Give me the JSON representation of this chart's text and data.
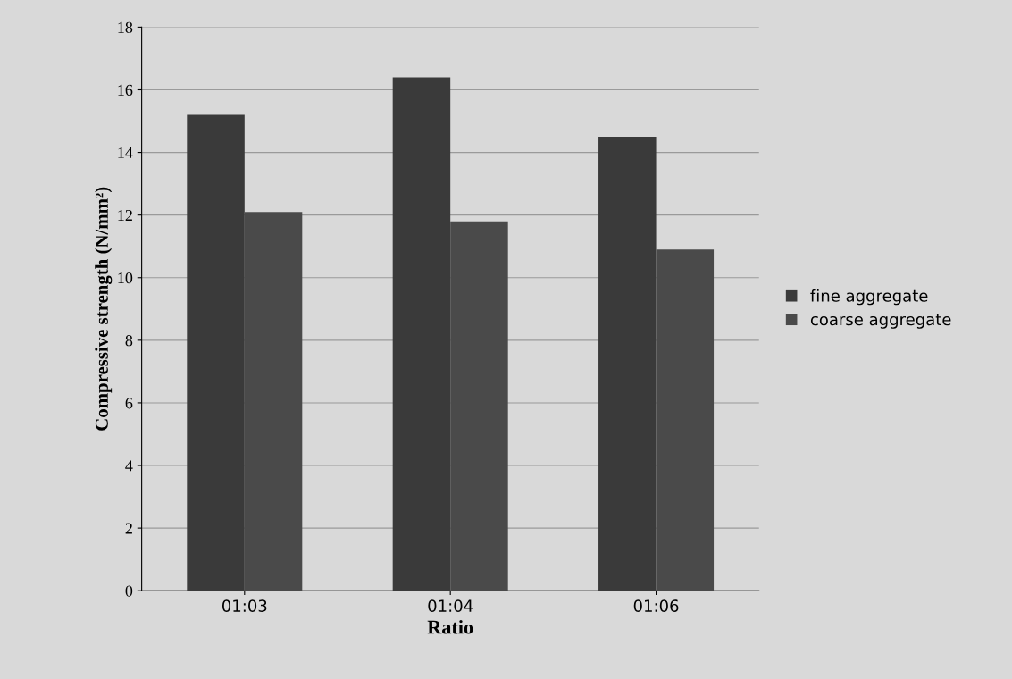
{
  "chart_data": {
    "type": "bar",
    "xlabel": "Ratio",
    "ylabel": "Compressive strength (N/mm²)",
    "categories": [
      "01:03",
      "01:04",
      "01:06"
    ],
    "series": [
      {
        "name": "fine aggregate",
        "color": "#3a3a3a",
        "values": [
          15.2,
          16.4,
          14.5
        ]
      },
      {
        "name": "coarse aggregate",
        "color": "#4a4a4a",
        "values": [
          12.1,
          11.8,
          10.9
        ]
      }
    ],
    "ylim": [
      0,
      18
    ],
    "yticks": [
      0,
      2,
      4,
      6,
      8,
      10,
      12,
      14,
      16,
      18
    ],
    "grid": "y",
    "legend": "right"
  }
}
